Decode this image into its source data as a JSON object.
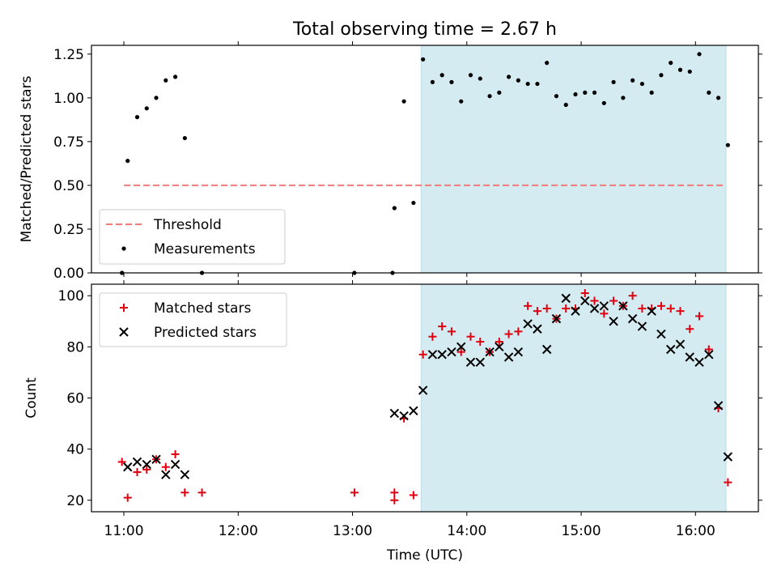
{
  "title": "Total observing time = 2.67 h",
  "xlabel": "Time (UTC)",
  "colors": {
    "shade": "#d4ebf1",
    "threshold": "#f47a7a",
    "matched": "#e0000f",
    "predicted": "#000000",
    "measurements": "#000000"
  },
  "chart_data": [
    {
      "type": "scatter",
      "ylabel": "Matched/Predicted stars",
      "xlim": [
        "10:43",
        "16:33"
      ],
      "ylim": [
        0,
        1.3
      ],
      "yticks": [
        "0.00",
        "0.25",
        "0.50",
        "0.75",
        "1.00",
        "1.25"
      ],
      "shaded_interval": [
        "13:36",
        "16:16"
      ],
      "legend_location": "lower left",
      "threshold": {
        "name": "Threshold",
        "value": 0.5,
        "x_range": [
          "11:00",
          "16:16"
        ]
      },
      "series": [
        {
          "name": "Measurements",
          "points": [
            [
              "10:59",
              0.0
            ],
            [
              "11:02",
              0.64
            ],
            [
              "11:07",
              0.89
            ],
            [
              "11:12",
              0.94
            ],
            [
              "11:17",
              1.0
            ],
            [
              "11:22",
              1.1
            ],
            [
              "11:27",
              1.12
            ],
            [
              "11:32",
              0.77
            ],
            [
              "11:41",
              0.0
            ],
            [
              "13:01",
              0.0
            ],
            [
              "13:21",
              0.0
            ],
            [
              "13:22",
              0.37
            ],
            [
              "13:27",
              0.98
            ],
            [
              "13:32",
              0.4
            ],
            [
              "13:37",
              1.22
            ],
            [
              "13:42",
              1.09
            ],
            [
              "13:47",
              1.13
            ],
            [
              "13:52",
              1.09
            ],
            [
              "13:57",
              0.98
            ],
            [
              "14:02",
              1.13
            ],
            [
              "14:07",
              1.11
            ],
            [
              "14:12",
              1.01
            ],
            [
              "14:17",
              1.03
            ],
            [
              "14:22",
              1.12
            ],
            [
              "14:27",
              1.1
            ],
            [
              "14:32",
              1.08
            ],
            [
              "14:37",
              1.08
            ],
            [
              "14:42",
              1.2
            ],
            [
              "14:47",
              1.01
            ],
            [
              "14:52",
              0.96
            ],
            [
              "14:57",
              1.02
            ],
            [
              "15:02",
              1.03
            ],
            [
              "15:07",
              1.03
            ],
            [
              "15:12",
              0.97
            ],
            [
              "15:17",
              1.09
            ],
            [
              "15:22",
              1.0
            ],
            [
              "15:27",
              1.1
            ],
            [
              "15:32",
              1.08
            ],
            [
              "15:37",
              1.03
            ],
            [
              "15:42",
              1.13
            ],
            [
              "15:47",
              1.2
            ],
            [
              "15:52",
              1.16
            ],
            [
              "15:57",
              1.15
            ],
            [
              "16:02",
              1.25
            ],
            [
              "16:07",
              1.03
            ],
            [
              "16:12",
              1.0
            ],
            [
              "16:17",
              0.73
            ]
          ]
        }
      ]
    },
    {
      "type": "scatter",
      "ylabel": "Count",
      "xlim": [
        "10:43",
        "16:33"
      ],
      "ylim": [
        15.5,
        104.5
      ],
      "yticks": [
        "20",
        "40",
        "60",
        "80",
        "100"
      ],
      "xticks": [
        "11:00",
        "12:00",
        "13:00",
        "14:00",
        "15:00",
        "16:00"
      ],
      "shaded_interval": [
        "13:36",
        "16:16"
      ],
      "legend_location": "upper left",
      "series": [
        {
          "name": "Matched stars",
          "marker": "+",
          "points": [
            [
              "10:59",
              35
            ],
            [
              "11:02",
              21
            ],
            [
              "11:07",
              31
            ],
            [
              "11:12",
              32
            ],
            [
              "11:17",
              36
            ],
            [
              "11:22",
              33
            ],
            [
              "11:27",
              38
            ],
            [
              "11:32",
              23
            ],
            [
              "11:41",
              23
            ],
            [
              "13:01",
              23
            ],
            [
              "13:22",
              23
            ],
            [
              "13:22",
              20
            ],
            [
              "13:27",
              52
            ],
            [
              "13:32",
              22
            ],
            [
              "13:37",
              77
            ],
            [
              "13:42",
              84
            ],
            [
              "13:47",
              88
            ],
            [
              "13:52",
              86
            ],
            [
              "13:57",
              78
            ],
            [
              "14:02",
              84
            ],
            [
              "14:07",
              82
            ],
            [
              "14:12",
              78
            ],
            [
              "14:17",
              82
            ],
            [
              "14:22",
              85
            ],
            [
              "14:27",
              86
            ],
            [
              "14:32",
              96
            ],
            [
              "14:37",
              94
            ],
            [
              "14:42",
              95
            ],
            [
              "14:47",
              91
            ],
            [
              "14:52",
              95
            ],
            [
              "14:57",
              95
            ],
            [
              "15:02",
              101
            ],
            [
              "15:07",
              98
            ],
            [
              "15:12",
              93
            ],
            [
              "15:17",
              98
            ],
            [
              "15:22",
              96
            ],
            [
              "15:27",
              100
            ],
            [
              "15:32",
              95
            ],
            [
              "15:37",
              95
            ],
            [
              "15:42",
              96
            ],
            [
              "15:47",
              95
            ],
            [
              "15:52",
              94
            ],
            [
              "15:57",
              87
            ],
            [
              "16:02",
              92
            ],
            [
              "16:07",
              79
            ],
            [
              "16:12",
              56
            ],
            [
              "16:17",
              27
            ]
          ]
        },
        {
          "name": "Predicted stars",
          "marker": "x",
          "points": [
            [
              "11:02",
              33
            ],
            [
              "11:07",
              35
            ],
            [
              "11:12",
              34
            ],
            [
              "11:17",
              36
            ],
            [
              "11:22",
              30
            ],
            [
              "11:27",
              34
            ],
            [
              "11:32",
              30
            ],
            [
              "13:22",
              54
            ],
            [
              "13:27",
              53
            ],
            [
              "13:32",
              55
            ],
            [
              "13:37",
              63
            ],
            [
              "13:42",
              77
            ],
            [
              "13:47",
              77
            ],
            [
              "13:52",
              78
            ],
            [
              "13:57",
              80
            ],
            [
              "14:02",
              74
            ],
            [
              "14:07",
              74
            ],
            [
              "14:12",
              78
            ],
            [
              "14:17",
              80
            ],
            [
              "14:22",
              76
            ],
            [
              "14:27",
              78
            ],
            [
              "14:32",
              89
            ],
            [
              "14:37",
              87
            ],
            [
              "14:42",
              79
            ],
            [
              "14:47",
              91
            ],
            [
              "14:52",
              99
            ],
            [
              "14:57",
              94
            ],
            [
              "15:02",
              98
            ],
            [
              "15:07",
              95
            ],
            [
              "15:12",
              96
            ],
            [
              "15:17",
              90
            ],
            [
              "15:22",
              96
            ],
            [
              "15:27",
              91
            ],
            [
              "15:32",
              88
            ],
            [
              "15:37",
              94
            ],
            [
              "15:42",
              85
            ],
            [
              "15:47",
              79
            ],
            [
              "15:52",
              81
            ],
            [
              "15:57",
              76
            ],
            [
              "16:02",
              74
            ],
            [
              "16:07",
              77
            ],
            [
              "16:12",
              57
            ],
            [
              "16:17",
              37
            ]
          ]
        }
      ]
    }
  ]
}
